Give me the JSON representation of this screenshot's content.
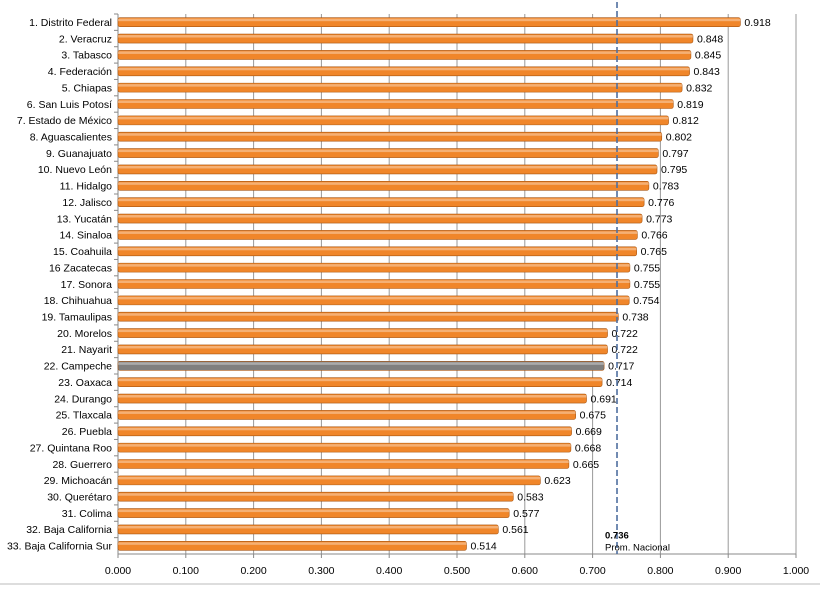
{
  "chart_data": {
    "type": "bar",
    "orientation": "horizontal",
    "categories": [
      "1. Distrito Federal",
      "2. Veracruz",
      "3. Tabasco",
      "4. Federación",
      "5. Chiapas",
      "6. San Luis Potosí",
      "7. Estado de México",
      "8. Aguascalientes",
      "9. Guanajuato",
      "10. Nuevo León",
      "11. Hidalgo",
      "12. Jalisco",
      "13. Yucatán",
      "14. Sinaloa",
      "15. Coahuila",
      "16 Zacatecas",
      "17. Sonora",
      "18. Chihuahua",
      "19. Tamaulipas",
      "20. Morelos",
      "21. Nayarit",
      "22. Campeche",
      "23. Oaxaca",
      "24. Durango",
      "25. Tlaxcala",
      "26. Puebla",
      "27. Quintana Roo",
      "28. Guerrero",
      "29. Michoacán",
      "30. Querétaro",
      "31. Colima",
      "32. Baja California",
      "33. Baja California Sur"
    ],
    "values": [
      0.918,
      0.848,
      0.845,
      0.843,
      0.832,
      0.819,
      0.812,
      0.802,
      0.797,
      0.795,
      0.783,
      0.776,
      0.773,
      0.766,
      0.765,
      0.755,
      0.755,
      0.754,
      0.738,
      0.722,
      0.722,
      0.717,
      0.714,
      0.691,
      0.675,
      0.669,
      0.668,
      0.665,
      0.623,
      0.583,
      0.577,
      0.561,
      0.514
    ],
    "colors": [
      "#f0862a",
      "#f0862a",
      "#f0862a",
      "#f0862a",
      "#f0862a",
      "#f0862a",
      "#f0862a",
      "#f0862a",
      "#f0862a",
      "#f0862a",
      "#f0862a",
      "#f0862a",
      "#f0862a",
      "#f0862a",
      "#f0862a",
      "#f0862a",
      "#f0862a",
      "#f0862a",
      "#f0862a",
      "#f0862a",
      "#f0862a",
      "#7f7f7f",
      "#f0862a",
      "#f0862a",
      "#f0862a",
      "#f0862a",
      "#f0862a",
      "#f0862a",
      "#f0862a",
      "#f0862a",
      "#f0862a",
      "#f0862a",
      "#f0862a"
    ],
    "xlim": [
      0,
      1
    ],
    "xticks": [
      {
        "value": 0,
        "label": "0.000"
      },
      {
        "value": 0.1,
        "label": "0.100"
      },
      {
        "value": 0.2,
        "label": "0.200"
      },
      {
        "value": 0.3,
        "label": "0.300"
      },
      {
        "value": 0.4,
        "label": "0.400"
      },
      {
        "value": 0.5,
        "label": "0.500"
      },
      {
        "value": 0.6,
        "label": "0.600"
      },
      {
        "value": 0.7,
        "label": "0.700"
      },
      {
        "value": 0.8,
        "label": "0.800"
      },
      {
        "value": 0.9,
        "label": "0.900"
      },
      {
        "value": 1,
        "label": "1.000"
      }
    ],
    "grid": true,
    "reference_line": {
      "value": 0.736,
      "value_label": "0.736",
      "label": "Prom. Nacional",
      "color": "#4f6f9f"
    }
  }
}
